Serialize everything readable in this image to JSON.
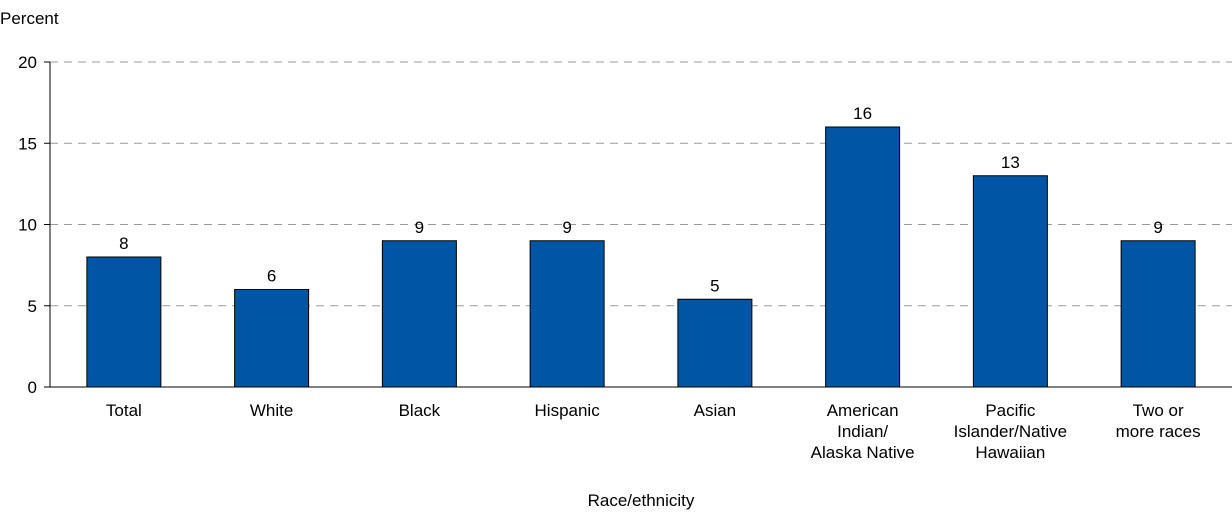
{
  "chart_data": {
    "type": "bar",
    "ylabel": "Percent",
    "xlabel": "Race/ethnicity",
    "ylim": [
      0,
      20
    ],
    "yticks": [
      0,
      5,
      10,
      15,
      20
    ],
    "grid": "horizontal-dashed",
    "bar_color": "#0055A5",
    "categories": [
      "Total",
      "White",
      "Black",
      "Hispanic",
      "Asian",
      "American Indian/ Alaska Native",
      "Pacific Islander/Native Hawaiian",
      "Two or more races"
    ],
    "category_lines": [
      [
        "Total"
      ],
      [
        "White"
      ],
      [
        "Black"
      ],
      [
        "Hispanic"
      ],
      [
        "Asian"
      ],
      [
        "American",
        "Indian/",
        "Alaska Native"
      ],
      [
        "Pacific",
        "Islander/Native",
        "Hawaiian"
      ],
      [
        "Two or",
        "more races"
      ]
    ],
    "values": [
      8,
      6,
      9,
      9,
      5.4,
      16,
      13,
      9
    ],
    "data_labels": [
      "8",
      "6",
      "9",
      "9",
      "5",
      "16",
      "13",
      "9"
    ]
  }
}
